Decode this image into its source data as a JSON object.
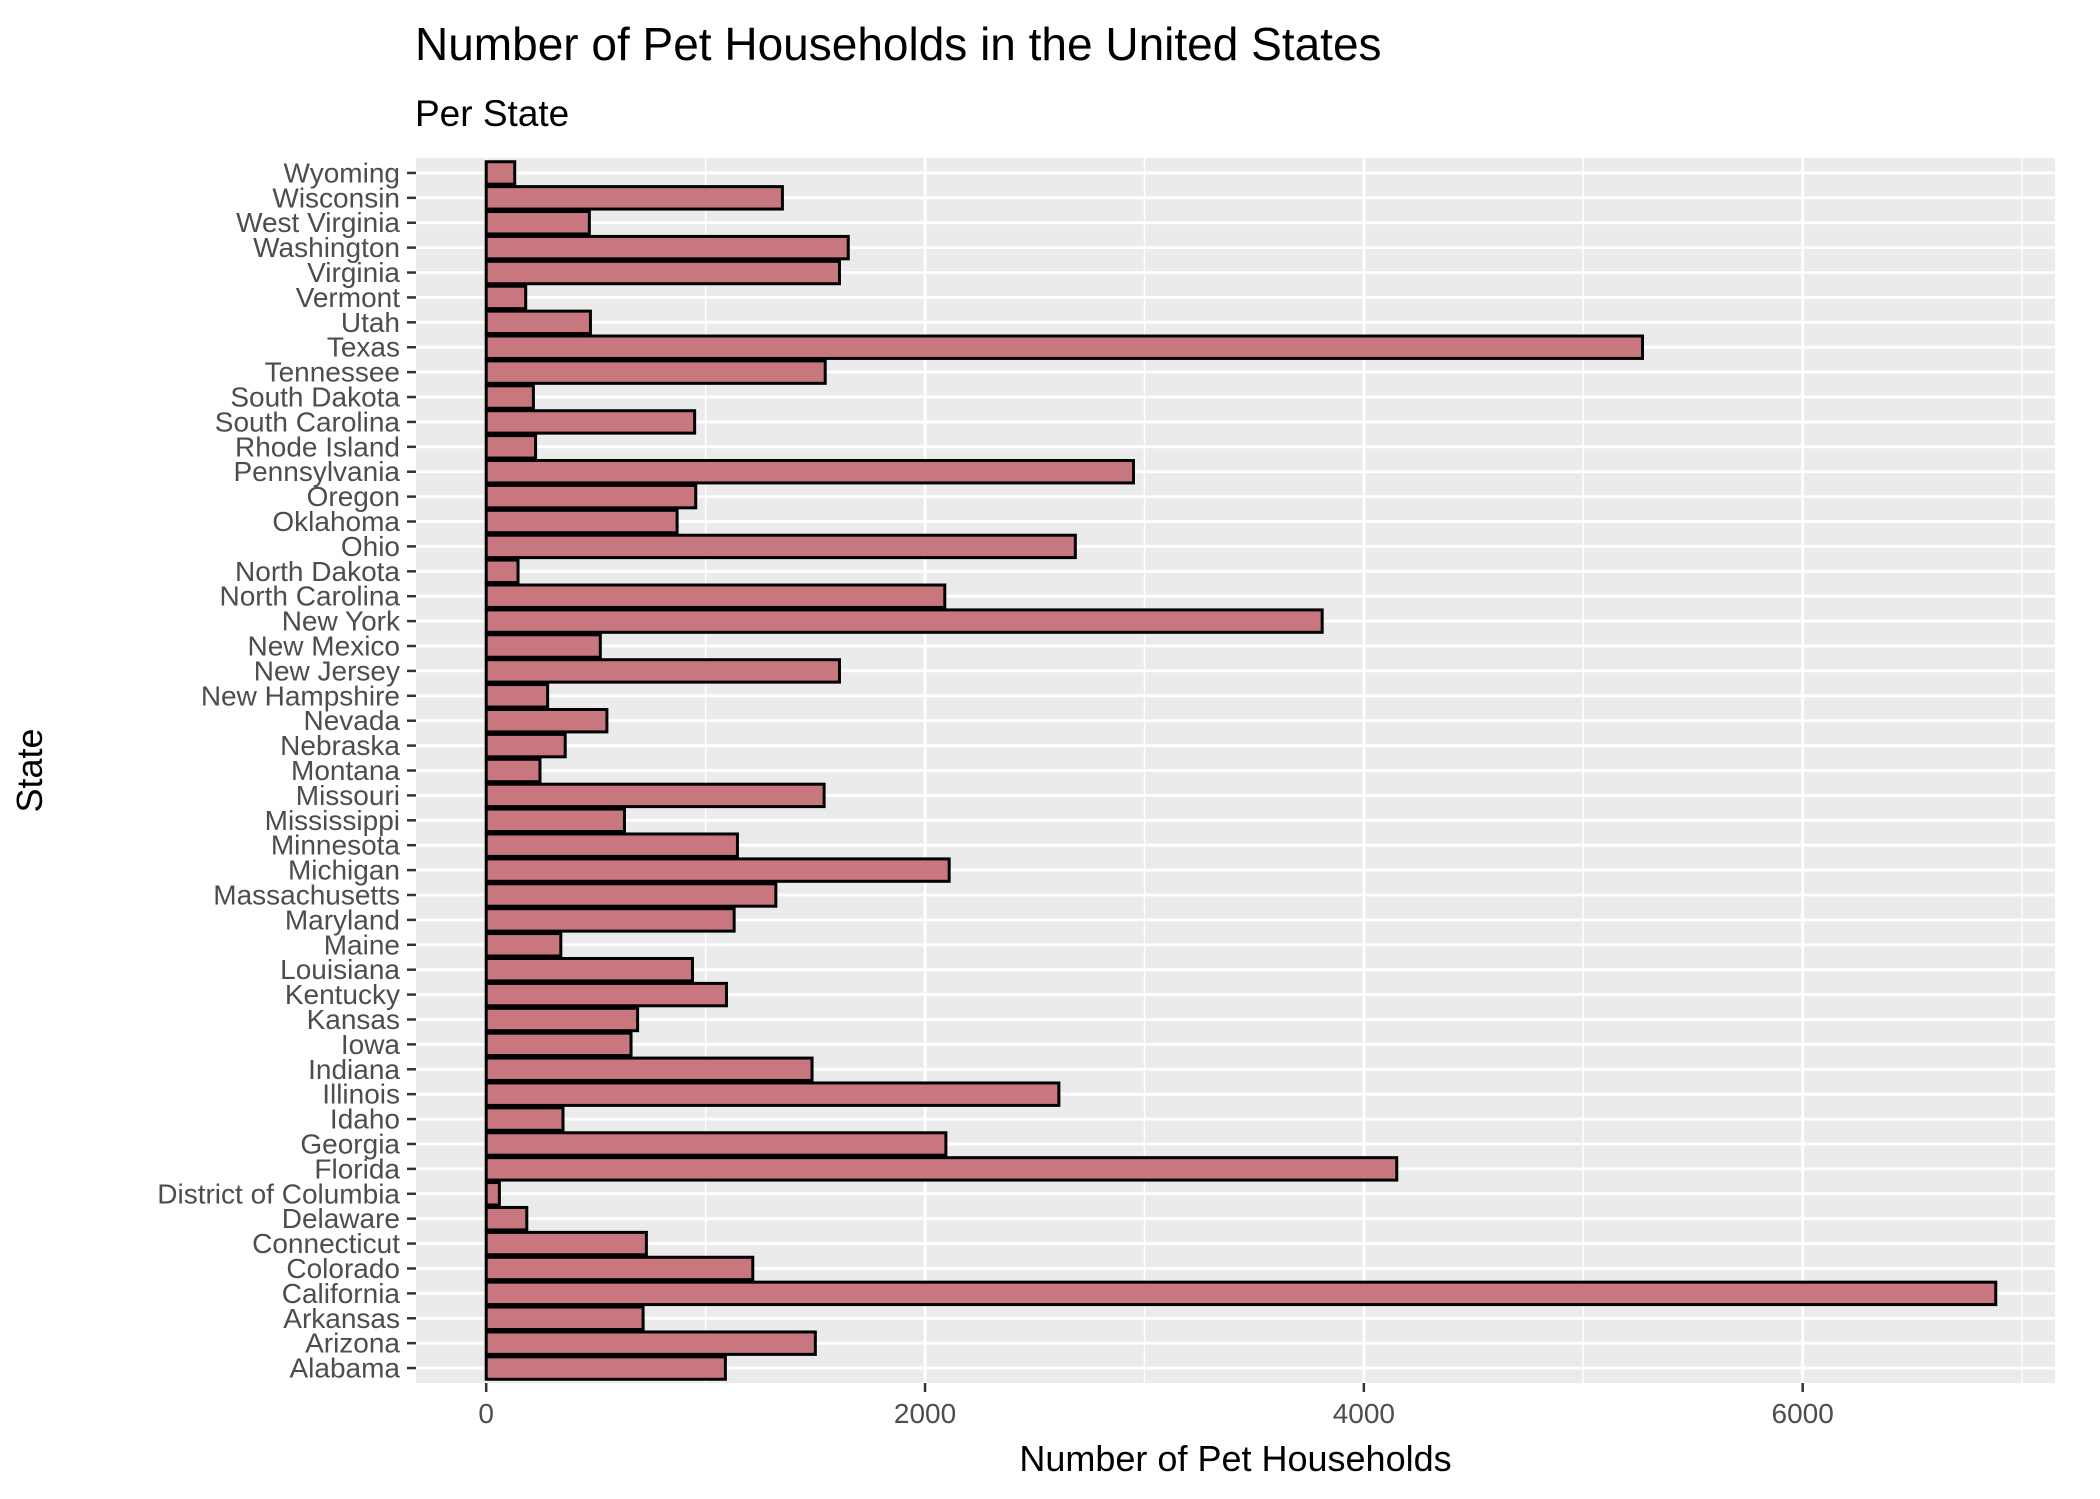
{
  "chart_data": {
    "type": "bar",
    "orientation": "horizontal",
    "title": "Number of Pet Households in the United States",
    "subtitle": "Per State",
    "xlabel": "Number of Pet Households",
    "ylabel": "State",
    "xlim": [
      -320,
      7150
    ],
    "x_ticks": [
      0,
      2000,
      4000,
      6000
    ],
    "x_tick_labels": [
      "0",
      "2000",
      "4000",
      "6000"
    ],
    "grid": true,
    "legend": "none",
    "bar_fill": "#c9777f",
    "bar_stroke": "#000000",
    "panel_background": "#ebebeb",
    "grid_color": "#ffffff",
    "categories": [
      "Alabama",
      "Arizona",
      "Arkansas",
      "California",
      "Colorado",
      "Connecticut",
      "Delaware",
      "District of Columbia",
      "Florida",
      "Georgia",
      "Idaho",
      "Illinois",
      "Indiana",
      "Iowa",
      "Kansas",
      "Kentucky",
      "Louisiana",
      "Maine",
      "Maryland",
      "Massachusetts",
      "Michigan",
      "Minnesota",
      "Mississippi",
      "Missouri",
      "Montana",
      "Nebraska",
      "Nevada",
      "New Hampshire",
      "New Jersey",
      "New Mexico",
      "New York",
      "North Carolina",
      "North Dakota",
      "Ohio",
      "Oklahoma",
      "Oregon",
      "Pennsylvania",
      "Rhode Island",
      "South Carolina",
      "South Dakota",
      "Tennessee",
      "Texas",
      "Utah",
      "Vermont",
      "Virginia",
      "Washington",
      "West Virginia",
      "Wisconsin",
      "Wyoming"
    ],
    "values": [
      1090,
      1500,
      715,
      6880,
      1215,
      730,
      185,
      60,
      4150,
      2095,
      350,
      2610,
      1485,
      660,
      690,
      1095,
      940,
      340,
      1130,
      1320,
      2110,
      1145,
      630,
      1540,
      245,
      360,
      550,
      280,
      1610,
      520,
      3810,
      2090,
      145,
      2685,
      870,
      955,
      2950,
      225,
      950,
      215,
      1545,
      5270,
      475,
      180,
      1610,
      1650,
      470,
      1350,
      130
    ]
  }
}
